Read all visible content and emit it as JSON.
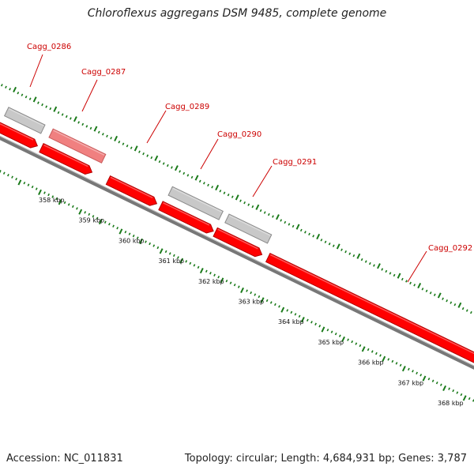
{
  "title": "Chloroflexus aggregans DSM 9485, complete genome",
  "accession_text": "Accession: NC_011831",
  "topology_text": "Topology: circular; Length: 4,684,931 bp; Genes: 3,787",
  "colors": {
    "gene_red": "#ff0000",
    "gene_red_dark": "#b00000",
    "gene_pink": "#f08080",
    "gene_gray": "#c8c8c8",
    "gene_gray_dark": "#8a8a8a",
    "backbone": "#777777",
    "tick_green": "#1a7a1a",
    "label_red": "#cc0000"
  },
  "scale": {
    "unit": "kbp",
    "ticks": [
      {
        "kbp": 358,
        "label": "358 kbp"
      },
      {
        "kbp": 359,
        "label": "359 kbp"
      },
      {
        "kbp": 360,
        "label": "360 kbp"
      },
      {
        "kbp": 361,
        "label": "361 kbp"
      },
      {
        "kbp": 362,
        "label": "362 kbp"
      },
      {
        "kbp": 363,
        "label": "363 kbp"
      },
      {
        "kbp": 364,
        "label": "364 kbp"
      },
      {
        "kbp": 365,
        "label": "365 kbp"
      },
      {
        "kbp": 366,
        "label": "366 kbp"
      },
      {
        "kbp": 367,
        "label": "367 kbp"
      },
      {
        "kbp": 368,
        "label": "368 kbp"
      }
    ]
  },
  "genes": [
    {
      "id": "Cagg_0286",
      "start_kbp": 357.05,
      "end_kbp": 357.95,
      "strand": "-",
      "color": "gray",
      "labeled": true
    },
    {
      "id": "Cagg_0287",
      "start_kbp": 358.15,
      "end_kbp": 359.45,
      "strand": "-",
      "color": "pink",
      "labeled": true
    },
    {
      "id": "",
      "start_kbp": 357.0,
      "end_kbp": 358.0,
      "strand": "+",
      "color": "red",
      "labeled": false
    },
    {
      "id": "",
      "start_kbp": 358.1,
      "end_kbp": 359.35,
      "strand": "+",
      "color": "red",
      "labeled": false
    },
    {
      "id": "Cagg_0289",
      "start_kbp": 359.75,
      "end_kbp": 360.95,
      "strand": "+",
      "color": "red",
      "labeled": true
    },
    {
      "id": "Cagg_0290",
      "start_kbp": 361.1,
      "end_kbp": 362.35,
      "strand": "-",
      "color": "gray",
      "labeled": true
    },
    {
      "id": "",
      "start_kbp": 361.05,
      "end_kbp": 362.35,
      "strand": "+",
      "color": "red",
      "labeled": false
    },
    {
      "id": "Cagg_0291",
      "start_kbp": 362.5,
      "end_kbp": 363.55,
      "strand": "-",
      "color": "gray",
      "labeled": true
    },
    {
      "id": "",
      "start_kbp": 362.4,
      "end_kbp": 363.55,
      "strand": "+",
      "color": "red",
      "labeled": false
    },
    {
      "id": "Cagg_0292",
      "start_kbp": 363.7,
      "end_kbp": 369.5,
      "strand": "+",
      "color": "red",
      "labeled": true
    }
  ]
}
